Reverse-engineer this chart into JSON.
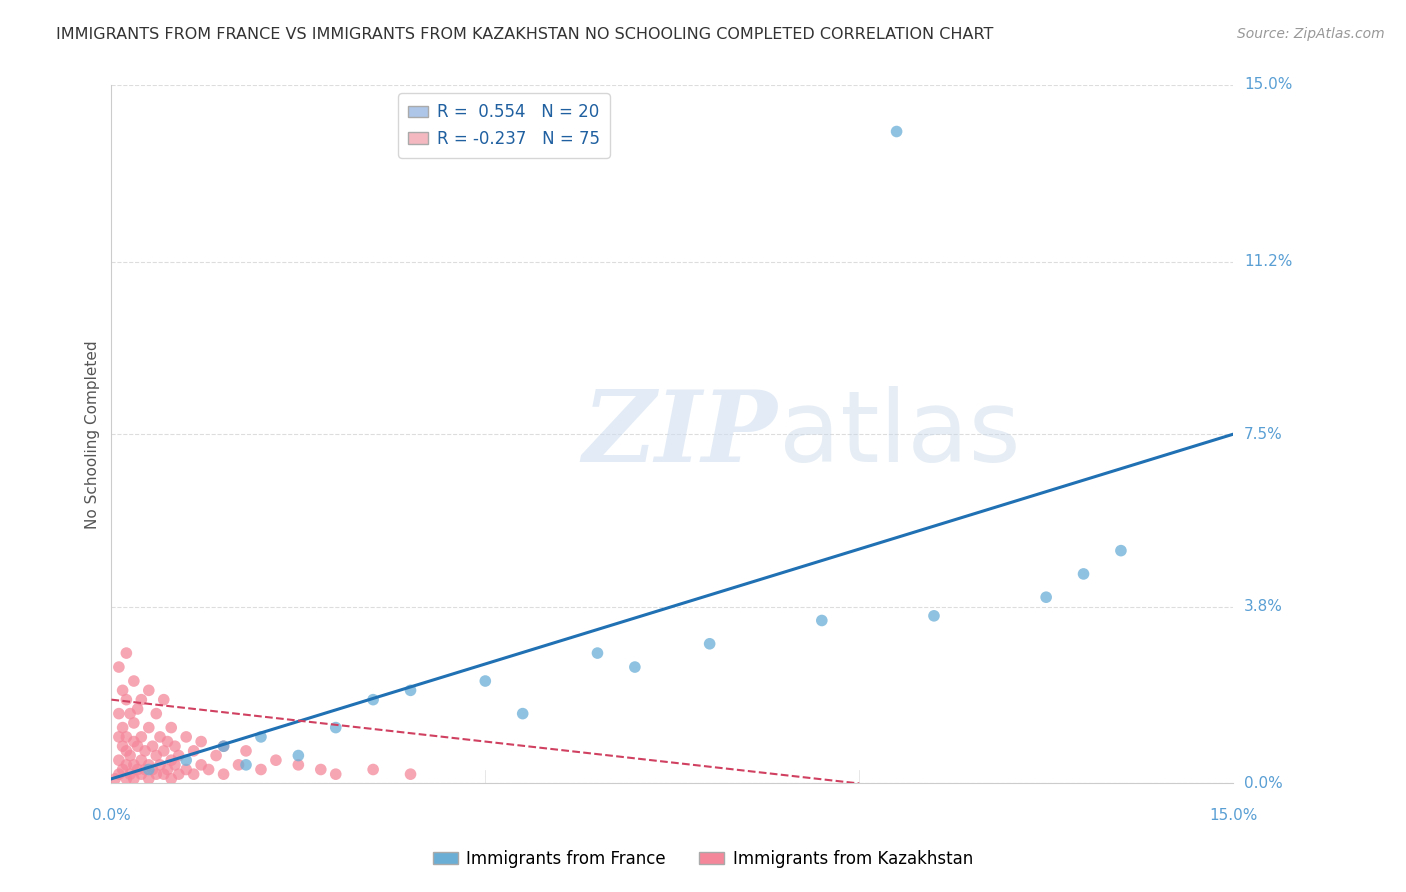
{
  "title": "IMMIGRANTS FROM FRANCE VS IMMIGRANTS FROM KAZAKHSTAN NO SCHOOLING COMPLETED CORRELATION CHART",
  "source": "Source: ZipAtlas.com",
  "ylabel": "No Schooling Completed",
  "y_tick_labels": [
    "0.0%",
    "3.8%",
    "7.5%",
    "11.2%",
    "15.0%"
  ],
  "y_tick_values": [
    0.0,
    3.8,
    7.5,
    11.2,
    15.0
  ],
  "x_lim": [
    0.0,
    15.0
  ],
  "y_lim": [
    0.0,
    15.0
  ],
  "legend_entries": [
    {
      "label": "R =  0.554   N = 20",
      "color": "#aec6e8"
    },
    {
      "label": "R = -0.237   N = 75",
      "color": "#f4b8c1"
    }
  ],
  "watermark_zip": "ZIP",
  "watermark_atlas": "atlas",
  "blue_color": "#6aaed6",
  "pink_color": "#f4879a",
  "trendline_blue_color": "#2070b4",
  "trendline_pink_color": "#d04060",
  "background_color": "#ffffff",
  "grid_color": "#dddddd",
  "axis_label_color": "#5a9fd4",
  "title_color": "#333333",
  "blue_dots": [
    [
      0.5,
      0.3
    ],
    [
      1.0,
      0.5
    ],
    [
      1.5,
      0.8
    ],
    [
      2.0,
      1.0
    ],
    [
      2.5,
      0.6
    ],
    [
      3.0,
      1.2
    ],
    [
      3.5,
      1.8
    ],
    [
      4.0,
      2.0
    ],
    [
      5.0,
      2.2
    ],
    [
      5.5,
      1.5
    ],
    [
      6.5,
      2.8
    ],
    [
      7.0,
      2.5
    ],
    [
      8.0,
      3.0
    ],
    [
      9.5,
      3.5
    ],
    [
      11.0,
      3.6
    ],
    [
      12.5,
      4.0
    ],
    [
      13.0,
      4.5
    ],
    [
      13.5,
      5.0
    ],
    [
      10.5,
      14.0
    ],
    [
      1.8,
      0.4
    ]
  ],
  "pink_dots": [
    [
      0.05,
      0.1
    ],
    [
      0.1,
      0.2
    ],
    [
      0.1,
      0.5
    ],
    [
      0.1,
      1.0
    ],
    [
      0.1,
      1.5
    ],
    [
      0.1,
      2.5
    ],
    [
      0.15,
      0.3
    ],
    [
      0.15,
      0.8
    ],
    [
      0.15,
      1.2
    ],
    [
      0.15,
      2.0
    ],
    [
      0.2,
      0.1
    ],
    [
      0.2,
      0.4
    ],
    [
      0.2,
      0.7
    ],
    [
      0.2,
      1.0
    ],
    [
      0.2,
      1.8
    ],
    [
      0.2,
      2.8
    ],
    [
      0.25,
      0.2
    ],
    [
      0.25,
      0.6
    ],
    [
      0.25,
      1.5
    ],
    [
      0.3,
      0.1
    ],
    [
      0.3,
      0.4
    ],
    [
      0.3,
      0.9
    ],
    [
      0.3,
      1.3
    ],
    [
      0.3,
      2.2
    ],
    [
      0.35,
      0.3
    ],
    [
      0.35,
      0.8
    ],
    [
      0.35,
      1.6
    ],
    [
      0.4,
      0.2
    ],
    [
      0.4,
      0.5
    ],
    [
      0.4,
      1.0
    ],
    [
      0.4,
      1.8
    ],
    [
      0.45,
      0.3
    ],
    [
      0.45,
      0.7
    ],
    [
      0.5,
      0.1
    ],
    [
      0.5,
      0.4
    ],
    [
      0.5,
      1.2
    ],
    [
      0.5,
      2.0
    ],
    [
      0.55,
      0.3
    ],
    [
      0.55,
      0.8
    ],
    [
      0.6,
      0.2
    ],
    [
      0.6,
      0.6
    ],
    [
      0.6,
      1.5
    ],
    [
      0.65,
      0.4
    ],
    [
      0.65,
      1.0
    ],
    [
      0.7,
      0.2
    ],
    [
      0.7,
      0.7
    ],
    [
      0.7,
      1.8
    ],
    [
      0.75,
      0.3
    ],
    [
      0.75,
      0.9
    ],
    [
      0.8,
      0.1
    ],
    [
      0.8,
      0.5
    ],
    [
      0.8,
      1.2
    ],
    [
      0.85,
      0.4
    ],
    [
      0.85,
      0.8
    ],
    [
      0.9,
      0.2
    ],
    [
      0.9,
      0.6
    ],
    [
      1.0,
      0.3
    ],
    [
      1.0,
      1.0
    ],
    [
      1.1,
      0.2
    ],
    [
      1.1,
      0.7
    ],
    [
      1.2,
      0.4
    ],
    [
      1.2,
      0.9
    ],
    [
      1.3,
      0.3
    ],
    [
      1.4,
      0.6
    ],
    [
      1.5,
      0.2
    ],
    [
      1.5,
      0.8
    ],
    [
      1.7,
      0.4
    ],
    [
      1.8,
      0.7
    ],
    [
      2.0,
      0.3
    ],
    [
      2.2,
      0.5
    ],
    [
      2.5,
      0.4
    ],
    [
      2.8,
      0.3
    ],
    [
      3.0,
      0.2
    ],
    [
      3.5,
      0.3
    ],
    [
      4.0,
      0.2
    ]
  ],
  "blue_trendline": [
    [
      0.0,
      0.1
    ],
    [
      15.0,
      7.5
    ]
  ],
  "pink_trendline": [
    [
      0.0,
      1.8
    ],
    [
      10.0,
      0.0
    ]
  ],
  "bottom_legend": [
    {
      "label": "Immigrants from France",
      "color": "#6aaed6"
    },
    {
      "label": "Immigrants from Kazakhstan",
      "color": "#f4879a"
    }
  ]
}
